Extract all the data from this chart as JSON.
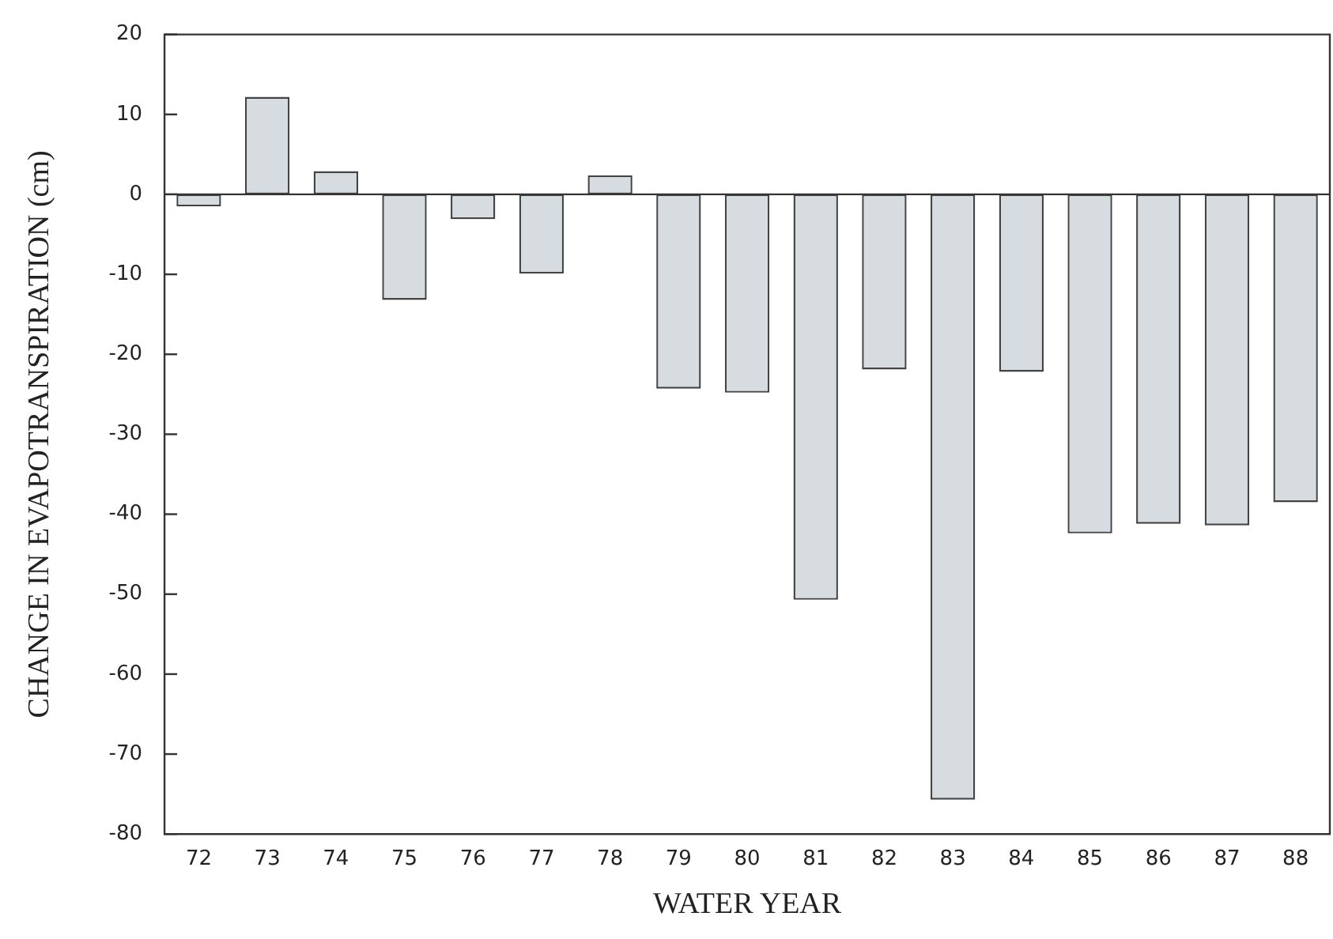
{
  "chart_data": {
    "type": "bar",
    "xlabel": "WATER YEAR",
    "ylabel": "CHANGE IN EVAPOTRANSPIRATION (cm)",
    "categories": [
      "72",
      "73",
      "74",
      "75",
      "76",
      "77",
      "78",
      "79",
      "80",
      "81",
      "82",
      "83",
      "84",
      "85",
      "86",
      "87",
      "88"
    ],
    "values": [
      -1.5,
      12.2,
      2.9,
      -13.2,
      -3.1,
      -9.9,
      2.4,
      -24.3,
      -24.8,
      -50.7,
      -21.9,
      -75.7,
      -22.2,
      -42.4,
      -41.2,
      -41.4,
      -38.5
    ],
    "color": "#d6dce0",
    "ylim": [
      -80,
      20
    ],
    "yticks": [
      -80,
      -70,
      -60,
      -50,
      -40,
      -30,
      -20,
      -10,
      0,
      10,
      20
    ],
    "ref_lines": [
      {
        "axis": "y",
        "value": 0
      }
    ],
    "grid": false,
    "legend": false
  }
}
